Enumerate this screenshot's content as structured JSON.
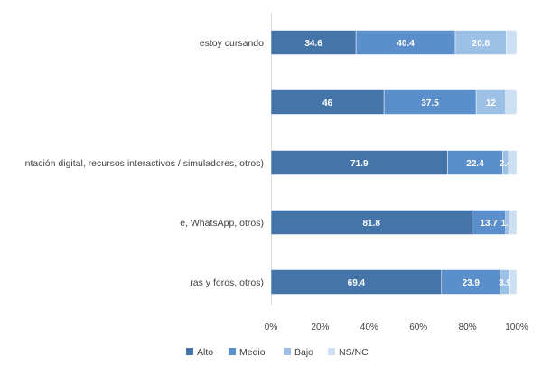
{
  "chart_data": {
    "type": "bar",
    "orientation": "horizontal",
    "stacked": true,
    "categories": [
      "estoy cursando",
      "",
      "ntación digital, recursos interactivos / simuladores, otros)",
      "e, WhatsApp, otros)",
      "ras y foros, otros)"
    ],
    "series": [
      {
        "name": "Alto",
        "color": "#4575a8",
        "values": [
          34.6,
          46,
          71.9,
          81.8,
          69.4
        ],
        "labels": [
          "34.6",
          "46",
          "71.9",
          "81.8",
          "69.4"
        ]
      },
      {
        "name": "Medio",
        "color": "#5b8fcb",
        "values": [
          40.4,
          37.5,
          22.4,
          13.7,
          23.9
        ],
        "labels": [
          "40.4",
          "37.5",
          "22.4",
          "13.7",
          "23.9"
        ]
      },
      {
        "name": "Bajo",
        "color": "#9dc0e6",
        "values": [
          20.8,
          12,
          2.4,
          1.3,
          3.9
        ],
        "labels": [
          "20.8",
          "12",
          "2.4",
          "1.3",
          "3.9"
        ]
      },
      {
        "name": "NS/NC",
        "color": "#cde0f3",
        "values": [
          4.2,
          4.5,
          3.3,
          3.2,
          2.8
        ],
        "labels": [
          "",
          "",
          "",
          "",
          ""
        ]
      }
    ],
    "xlim": [
      0,
      100
    ],
    "xticks": [
      "0%",
      "20%",
      "40%",
      "60%",
      "80%",
      "100%"
    ],
    "legend_position": "bottom",
    "gridlines": false,
    "axis_color": "#d9d9d9",
    "text_color": "#404040",
    "data_label_color": "#ffffff"
  }
}
